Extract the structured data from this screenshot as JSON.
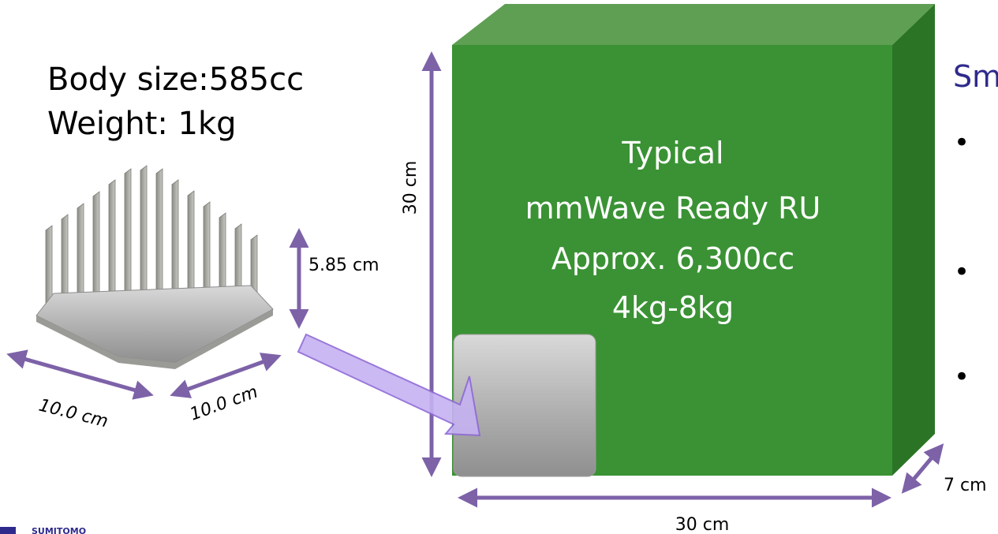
{
  "device": {
    "body_size": "Body size:585cc",
    "weight": "Weight: 1kg",
    "dim_height": "5.85 cm",
    "dim_width": "10.0 cm",
    "dim_depth": "10.0 cm"
  },
  "typical_ru": {
    "line1": "Typical",
    "line2": "mmWave Ready RU",
    "line3": "Approx. 6,300cc",
    "line4": "4kg-8kg",
    "dim_height": "30 cm",
    "dim_width": "30 cm",
    "dim_depth": "7 cm"
  },
  "right_panel": {
    "heading_partial": "Sm",
    "bullets": [
      "•",
      "•",
      "•"
    ]
  },
  "colors": {
    "cube_front": "#3a9234",
    "cube_top": "#5f9f54",
    "cube_side": "#2b7425",
    "arrow": "#7d62a8",
    "callout_fill": "#c6b2f2",
    "callout_stroke": "#8f6ad6",
    "heading": "#2e2a8c"
  }
}
